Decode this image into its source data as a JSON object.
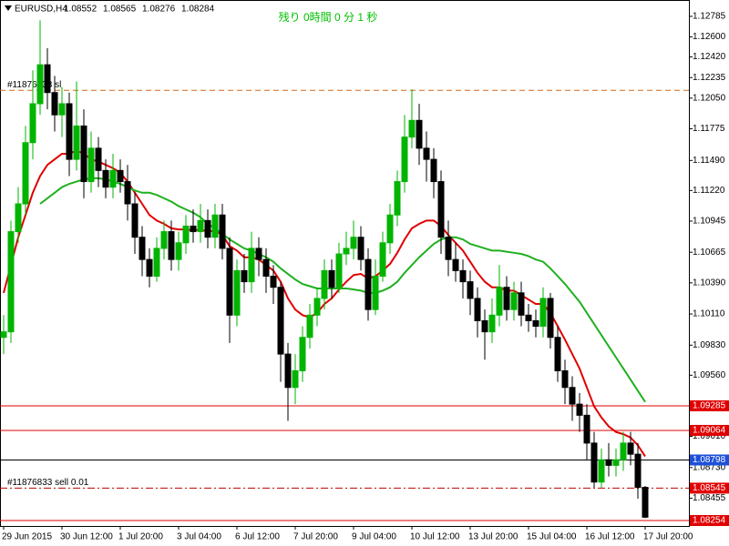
{
  "chart_data": {
    "type": "candlestick",
    "symbol": "EURUSD,H4",
    "countdown": "残り 0時間 0 分 1 秒",
    "countdown_color": "#00c000",
    "up_color": "#00b400",
    "down_color": "#000000",
    "ylim": [
      1.08205,
      1.12932
    ],
    "yticks": [
      {
        "value": 1.12785,
        "label": "1.12785"
      },
      {
        "value": 1.126,
        "label": "1.12600"
      },
      {
        "value": 1.1242,
        "label": "1.12420"
      },
      {
        "value": 1.12235,
        "label": "1.12235"
      },
      {
        "value": 1.1205,
        "label": "1.12050"
      },
      {
        "value": 1.11775,
        "label": "1.11775"
      },
      {
        "value": 1.1149,
        "label": "1.11490"
      },
      {
        "value": 1.1122,
        "label": "1.11220"
      },
      {
        "value": 1.10945,
        "label": "1.10945"
      },
      {
        "value": 1.10665,
        "label": "1.10665"
      },
      {
        "value": 1.1039,
        "label": "1.10390"
      },
      {
        "value": 1.1011,
        "label": "1.10110"
      },
      {
        "value": 1.0983,
        "label": "1.09830"
      },
      {
        "value": 1.0956,
        "label": "1.09560"
      },
      {
        "value": 1.0901,
        "label": "1.09010"
      },
      {
        "value": 1.0873,
        "label": "1.08730"
      },
      {
        "value": 1.08455,
        "label": "1.08455"
      }
    ],
    "categories": [
      "29 Jun 2015",
      null,
      null,
      null,
      null,
      null,
      null,
      null,
      "30 Jun 12:00",
      null,
      null,
      null,
      null,
      null,
      null,
      null,
      "1 Jul 20:00",
      null,
      null,
      null,
      null,
      null,
      null,
      null,
      "3 Jul 04:00",
      null,
      null,
      null,
      null,
      null,
      null,
      null,
      "6 Jul 12:00",
      null,
      null,
      null,
      null,
      null,
      null,
      null,
      "7 Jul 20:00",
      null,
      null,
      null,
      null,
      null,
      null,
      null,
      "9 Jul 04:00",
      null,
      null,
      null,
      null,
      null,
      null,
      null,
      "10 Jul 12:00",
      null,
      null,
      null,
      null,
      null,
      null,
      null,
      "13 Jul 20:00",
      null,
      null,
      null,
      null,
      null,
      null,
      null,
      "15 Jul 04:00",
      null,
      null,
      null,
      null,
      null,
      null,
      null,
      "16 Jul 12:00",
      null,
      null,
      null,
      null,
      null,
      null,
      null,
      "17 Jul 20:00"
    ],
    "open": [
      1.099,
      1.0995,
      1.1085,
      1.111,
      1.1165,
      1.12,
      1.1235,
      1.121,
      1.119,
      1.12,
      1.115,
      1.118,
      1.113,
      1.116,
      1.114,
      1.1125,
      1.114,
      1.113,
      1.111,
      1.108,
      1.106,
      1.1045,
      1.107,
      1.1085,
      1.106,
      1.1075,
      1.109,
      1.1085,
      1.1095,
      1.108,
      1.11,
      1.107,
      1.101,
      1.105,
      1.104,
      1.107,
      1.106,
      1.1045,
      1.1035,
      1.0975,
      1.0945,
      1.096,
      1.099,
      1.101,
      1.1025,
      1.105,
      1.1035,
      1.1065,
      1.107,
      1.108,
      1.106,
      1.1015,
      1.1045,
      1.1075,
      1.11,
      1.113,
      1.117,
      1.1185,
      1.116,
      1.115,
      1.113,
      1.108,
      1.106,
      1.105,
      1.104,
      1.1025,
      1.1005,
      1.0995,
      1.101,
      1.1035,
      1.1015,
      1.103,
      1.101,
      1.1005,
      1.1,
      1.1025,
      1.099,
      1.096,
      1.0945,
      1.093,
      1.092,
      1.0895,
      1.086,
      1.088,
      1.0875,
      1.088,
      1.0895,
      1.0885,
      1.08552
    ],
    "high": [
      1.101,
      1.1095,
      1.1125,
      1.118,
      1.123,
      1.1275,
      1.125,
      1.1225,
      1.1215,
      1.121,
      1.122,
      1.1195,
      1.1175,
      1.117,
      1.115,
      1.1155,
      1.115,
      1.1145,
      1.112,
      1.109,
      1.107,
      1.108,
      1.1095,
      1.1095,
      1.1085,
      1.11,
      1.1105,
      1.111,
      1.1105,
      1.111,
      1.111,
      1.108,
      1.106,
      1.1065,
      1.1085,
      1.108,
      1.107,
      1.1055,
      1.104,
      1.0985,
      1.0975,
      1.1,
      1.102,
      1.1035,
      1.106,
      1.106,
      1.1075,
      1.1085,
      1.1095,
      1.109,
      1.107,
      1.106,
      1.1085,
      1.111,
      1.114,
      1.119,
      1.1213,
      1.12,
      1.1175,
      1.116,
      1.114,
      1.1095,
      1.1075,
      1.106,
      1.105,
      1.1035,
      1.1015,
      1.1025,
      1.1055,
      1.1045,
      1.104,
      1.104,
      1.102,
      1.1015,
      1.1035,
      1.103,
      1.1,
      1.097,
      1.0955,
      1.094,
      1.093,
      1.0905,
      1.089,
      1.0895,
      1.089,
      1.0905,
      1.0905,
      1.0895,
      1.08565
    ],
    "low": [
      1.0975,
      1.0985,
      1.1075,
      1.11,
      1.115,
      1.119,
      1.1195,
      1.1175,
      1.117,
      1.1135,
      1.114,
      1.1115,
      1.112,
      1.1125,
      1.1115,
      1.1115,
      1.112,
      1.1095,
      1.1065,
      1.1045,
      1.1035,
      1.104,
      1.106,
      1.105,
      1.105,
      1.1065,
      1.1075,
      1.1075,
      1.107,
      1.107,
      1.106,
      1.0985,
      1.1,
      1.103,
      1.103,
      1.1045,
      1.103,
      1.102,
      1.095,
      1.0915,
      1.093,
      1.095,
      1.098,
      1.1,
      1.1015,
      1.1025,
      1.103,
      1.1055,
      1.106,
      1.105,
      1.1005,
      1.101,
      1.104,
      1.1065,
      1.109,
      1.112,
      1.116,
      1.1145,
      1.113,
      1.1115,
      1.1065,
      1.1045,
      1.104,
      1.1025,
      1.101,
      1.099,
      1.097,
      1.0985,
      1.1,
      1.1005,
      1.1005,
      1.1,
      1.0995,
      1.099,
      1.099,
      1.098,
      1.095,
      1.093,
      1.0915,
      1.0905,
      1.088,
      1.0855,
      1.0855,
      1.0865,
      1.0865,
      1.087,
      1.0875,
      1.0845,
      1.08276
    ],
    "close": [
      1.0995,
      1.1085,
      1.111,
      1.1165,
      1.12,
      1.1235,
      1.121,
      1.119,
      1.12,
      1.115,
      1.118,
      1.113,
      1.116,
      1.114,
      1.1125,
      1.114,
      1.113,
      1.111,
      1.108,
      1.106,
      1.1045,
      1.107,
      1.1085,
      1.106,
      1.1075,
      1.109,
      1.1085,
      1.1095,
      1.108,
      1.11,
      1.107,
      1.101,
      1.105,
      1.104,
      1.107,
      1.106,
      1.1045,
      1.1035,
      1.0975,
      1.0945,
      1.096,
      1.099,
      1.101,
      1.1025,
      1.105,
      1.1035,
      1.1065,
      1.107,
      1.108,
      1.106,
      1.1015,
      1.1045,
      1.1075,
      1.11,
      1.113,
      1.117,
      1.1185,
      1.116,
      1.115,
      1.113,
      1.108,
      1.106,
      1.105,
      1.104,
      1.1025,
      1.1005,
      1.0995,
      1.101,
      1.1035,
      1.1015,
      1.103,
      1.101,
      1.1005,
      1.1,
      1.1025,
      1.099,
      1.096,
      1.0945,
      1.093,
      1.092,
      1.0895,
      1.086,
      1.088,
      1.0875,
      1.088,
      1.0895,
      1.0885,
      1.08552,
      1.08284
    ],
    "lines": [
      {
        "color": "#e00000",
        "width": 2,
        "values": [
          1.103,
          1.1055,
          1.108,
          1.11,
          1.112,
          1.1135,
          1.1145,
          1.115,
          1.1155,
          1.1155,
          1.1158,
          1.1155,
          1.115,
          1.1148,
          1.1145,
          1.1142,
          1.1138,
          1.113,
          1.112,
          1.111,
          1.11,
          1.1095,
          1.1092,
          1.1088,
          1.1087,
          1.1087,
          1.1086,
          1.1087,
          1.1085,
          1.1086,
          1.1082,
          1.1072,
          1.1068,
          1.1062,
          1.1062,
          1.106,
          1.1055,
          1.105,
          1.104,
          1.1025,
          1.1015,
          1.101,
          1.1008,
          1.1012,
          1.102,
          1.1025,
          1.1033,
          1.104,
          1.1046,
          1.1047,
          1.1043,
          1.1045,
          1.105,
          1.1056,
          1.1066,
          1.1078,
          1.1088,
          1.1092,
          1.1095,
          1.1095,
          1.109,
          1.1082,
          1.1075,
          1.1068,
          1.1058,
          1.1048,
          1.104,
          1.1035,
          1.1035,
          1.1032,
          1.1032,
          1.1028,
          1.1024,
          1.102,
          1.102,
          1.1012,
          1.1,
          1.0988,
          1.0975,
          1.0962,
          1.0945,
          1.0928,
          1.0918,
          1.091,
          1.0905,
          1.0903,
          1.09,
          1.0893,
          1.0883
        ]
      },
      {
        "color": "#20b020",
        "width": 2,
        "values": [
          null,
          null,
          null,
          null,
          null,
          1.111,
          1.1115,
          1.112,
          1.1125,
          1.1128,
          1.113,
          1.1132,
          1.1133,
          1.1133,
          1.1132,
          1.113,
          1.1128,
          1.1125,
          1.1122,
          1.112,
          1.112,
          1.1118,
          1.1115,
          1.1112,
          1.1108,
          1.1105,
          1.1102,
          1.1098,
          1.1092,
          1.1088,
          1.1083,
          1.1078,
          1.1074,
          1.107,
          1.1068,
          1.1065,
          1.1062,
          1.1058,
          1.1052,
          1.1047,
          1.1042,
          1.1038,
          1.1036,
          1.1034,
          1.1034,
          1.1034,
          1.1034,
          1.1034,
          1.1033,
          1.1032,
          1.103,
          1.103,
          1.1032,
          1.1035,
          1.104,
          1.1048,
          1.1055,
          1.1062,
          1.1068,
          1.1074,
          1.1078,
          1.108,
          1.108,
          1.1078,
          1.1074,
          1.1072,
          1.107,
          1.1068,
          1.1068,
          1.1067,
          1.1066,
          1.1065,
          1.1063,
          1.106,
          1.1058,
          1.1052,
          1.1045,
          1.1038,
          1.103,
          1.1022,
          1.1012,
          1.1002,
          1.0992,
          1.0982,
          1.0972,
          1.0962,
          1.0952,
          1.0942,
          1.0932
        ]
      }
    ],
    "levels": [
      {
        "value": 1.1212,
        "color": "#d2691e",
        "style": "dash",
        "text": "#11876833 sl"
      },
      {
        "value": 1.09285,
        "color": "#e00000",
        "style": "solid",
        "tag_color": "#e00000"
      },
      {
        "value": 1.09064,
        "color": "#e00000",
        "style": "solid",
        "tag_color": "#e00000"
      },
      {
        "value": 1.08798,
        "color": "#000000",
        "style": "solid",
        "tag_color": "#1e4fd8"
      },
      {
        "value": 1.08545,
        "color": "#c00000",
        "style": "dashdot",
        "text": "#11876833 sell 0.01",
        "tag_color": "#e00000"
      },
      {
        "value": 1.08254,
        "color": "#e00000",
        "style": "solid",
        "tag_color": "#e00000"
      }
    ]
  }
}
